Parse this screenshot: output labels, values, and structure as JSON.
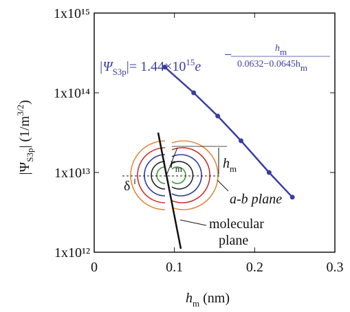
{
  "chart_data": {
    "type": "line",
    "xlabel": [
      "h",
      "m",
      " (nm)"
    ],
    "ylabel": [
      "|Ψ",
      "S3p",
      "|  (1/m",
      "3/2",
      ")"
    ],
    "x": [
      0.088,
      0.124,
      0.154,
      0.183,
      0.218,
      0.247
    ],
    "series": [
      {
        "color": "#3a3d9e",
        "values": [
          210000000000000,
          100000000000000,
          51000000000000,
          25000000000000,
          10000000000000,
          4900000000000
        ]
      }
    ],
    "xlim": [
      0,
      0.3
    ],
    "xticks": [
      0,
      0.1,
      0.2,
      0.3
    ],
    "ylim": [
      1000000000000,
      1000000000000000
    ],
    "log_y": true,
    "yticks": [
      {
        "value": 1000000000000,
        "label": "1x10¹²"
      },
      {
        "value": 10000000000000,
        "label": "1x10¹³"
      },
      {
        "value": 100000000000000,
        "label": "1x10¹⁴"
      },
      {
        "value": 1000000000000000,
        "label": "1x10¹⁵"
      }
    ],
    "formula": {
      "lhs": [
        "|Ψ",
        "S3p",
        "|"
      ],
      "coef": "= 1.44×10",
      "coef_exp": "15",
      "base": "e",
      "sign": "−",
      "numerator": [
        "h",
        "m"
      ],
      "denominator": [
        "0.0632−0.0645h",
        "m"
      ]
    },
    "inset": {
      "h_label": [
        "h",
        "m"
      ],
      "r_label": [
        "r",
        "m"
      ],
      "delta": "δ",
      "ab_plane": "a-b plane",
      "molecular_plane": [
        "molecular",
        "plane"
      ]
    }
  }
}
